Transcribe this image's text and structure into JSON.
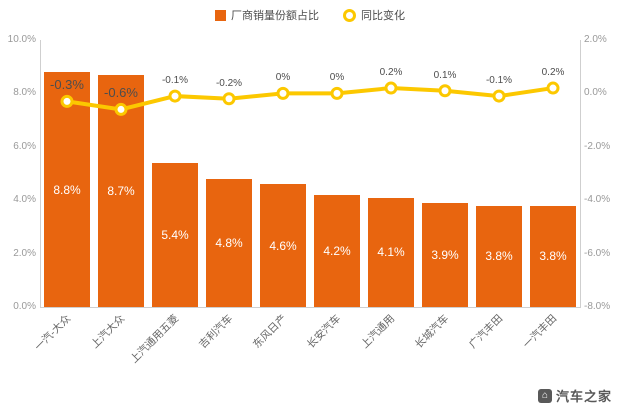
{
  "legend": {
    "bar_label": "厂商销量份额占比",
    "line_label": "同比变化"
  },
  "watermark": {
    "text": "汽车之家"
  },
  "colors": {
    "bar": "#e8650f",
    "line": "#fcc800",
    "bar_value_label": "#ffffff",
    "line_value_label": "#4d4d4d",
    "axis_text": "#999999",
    "category_text": "#666666",
    "axis_line": "#cfcfcf"
  },
  "chart_data": {
    "type": "bar",
    "subtype": "bar-line-combo",
    "title": "",
    "categories": [
      "一汽-大众",
      "上汽大众",
      "上汽通用五菱",
      "吉利汽车",
      "东风日产",
      "长安汽车",
      "上汽通用",
      "长城汽车",
      "广汽丰田",
      "一汽丰田"
    ],
    "series": [
      {
        "name": "厂商销量份额占比",
        "type": "bar",
        "y_axis": "left",
        "color": "#e8650f",
        "values": [
          8.8,
          8.7,
          5.4,
          4.8,
          4.6,
          4.2,
          4.1,
          3.9,
          3.8,
          3.8
        ],
        "data_labels": [
          "8.8%",
          "8.7%",
          "5.4%",
          "4.8%",
          "4.6%",
          "4.2%",
          "4.1%",
          "3.9%",
          "3.8%",
          "3.8%"
        ]
      },
      {
        "name": "同比变化",
        "type": "line",
        "y_axis": "right",
        "color": "#fcc800",
        "values": [
          -0.3,
          -0.6,
          -0.1,
          -0.2,
          0,
          0,
          0.2,
          0.1,
          -0.1,
          0.2
        ],
        "data_labels": [
          "-0.3%",
          "-0.6%",
          "-0.1%",
          "-0.2%",
          "0%",
          "0%",
          "0.2%",
          "0.1%",
          "-0.1%",
          "0.2%"
        ]
      }
    ],
    "left_axis": {
      "min": 0,
      "max": 10,
      "tick_values": [
        10,
        8,
        6,
        4,
        2,
        0
      ],
      "tick_labels": [
        "10.0%",
        "8.0%",
        "6.0%",
        "4.0%",
        "2.0%",
        "0.0%"
      ]
    },
    "right_axis": {
      "min": -8,
      "max": 2,
      "tick_values": [
        2,
        0,
        -2,
        -4,
        -6,
        -8
      ],
      "tick_labels": [
        "2.0%",
        "0.0%",
        "-2.0%",
        "-4.0%",
        "-6.0%",
        "-8.0%"
      ]
    },
    "grid": false,
    "legend_position": "top-center",
    "x_label_rotation": 45
  }
}
